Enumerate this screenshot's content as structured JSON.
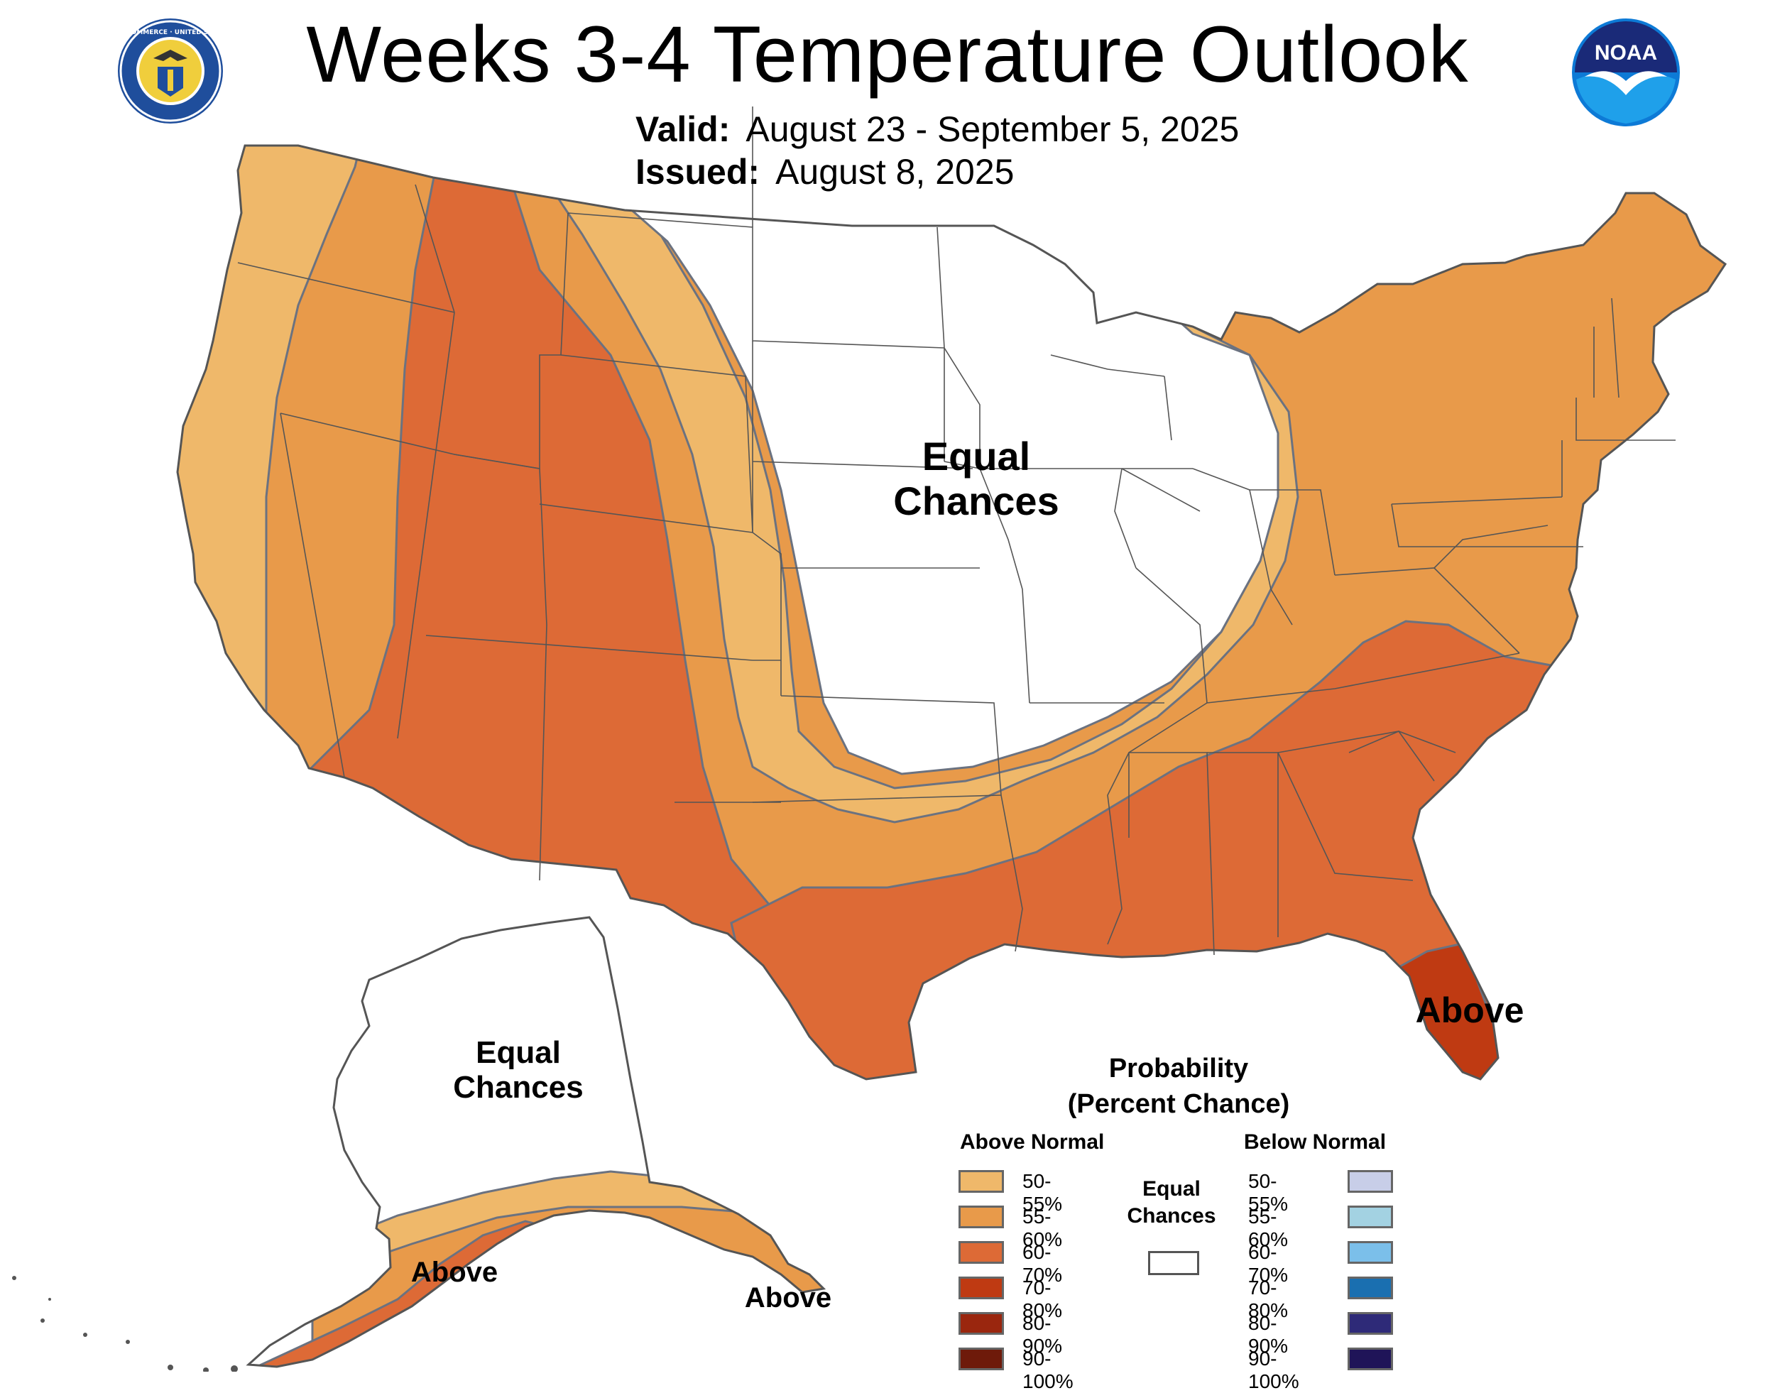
{
  "header": {
    "title": "Weeks 3-4 Temperature Outlook",
    "valid_label": "Valid:",
    "valid_dates": "August 23 - September 5, 2025",
    "issued_label": "Issued:",
    "issued_date": "August 8, 2025"
  },
  "logos": {
    "commerce_seal_text": "DEPARTMENT OF COMMERCE · UNITED STATES OF AMERICA",
    "noaa_text": "NOAA"
  },
  "map_labels": {
    "conus_equal_chances": "Equal Chances",
    "alaska_equal_chances": "Equal Chances",
    "florida_above": "Above",
    "alaska_above_south": "Above",
    "alaska_above_panhandle": "Above"
  },
  "legend": {
    "title": "Probability (Percent Chance)",
    "above_header": "Above Normal",
    "below_header": "Below Normal",
    "equal_chances": "Equal Chances",
    "above_items": [
      {
        "label": "50-55%",
        "color": "#efb86a"
      },
      {
        "label": "55-60%",
        "color": "#e89a4a"
      },
      {
        "label": "60-70%",
        "color": "#dd6a36"
      },
      {
        "label": "70-80%",
        "color": "#bf3a12"
      },
      {
        "label": "80-90%",
        "color": "#9a260e"
      },
      {
        "label": "90-100%",
        "color": "#6e1a0a"
      }
    ],
    "below_items": [
      {
        "label": "50-55%",
        "color": "#c8cee8"
      },
      {
        "label": "55-60%",
        "color": "#a3d2e2"
      },
      {
        "label": "60-70%",
        "color": "#7bbfea"
      },
      {
        "label": "70-80%",
        "color": "#1a6fb0"
      },
      {
        "label": "80-90%",
        "color": "#2e2a78"
      },
      {
        "label": "90-100%",
        "color": "#1f1458"
      }
    ]
  },
  "colors": {
    "p50_55": "#efb86a",
    "p55_60": "#e89a4a",
    "p60_70": "#dd6a36",
    "p70_80": "#bf3a12",
    "ec": "#ffffff",
    "boundary": "#555555",
    "contour": "#6b7280"
  }
}
